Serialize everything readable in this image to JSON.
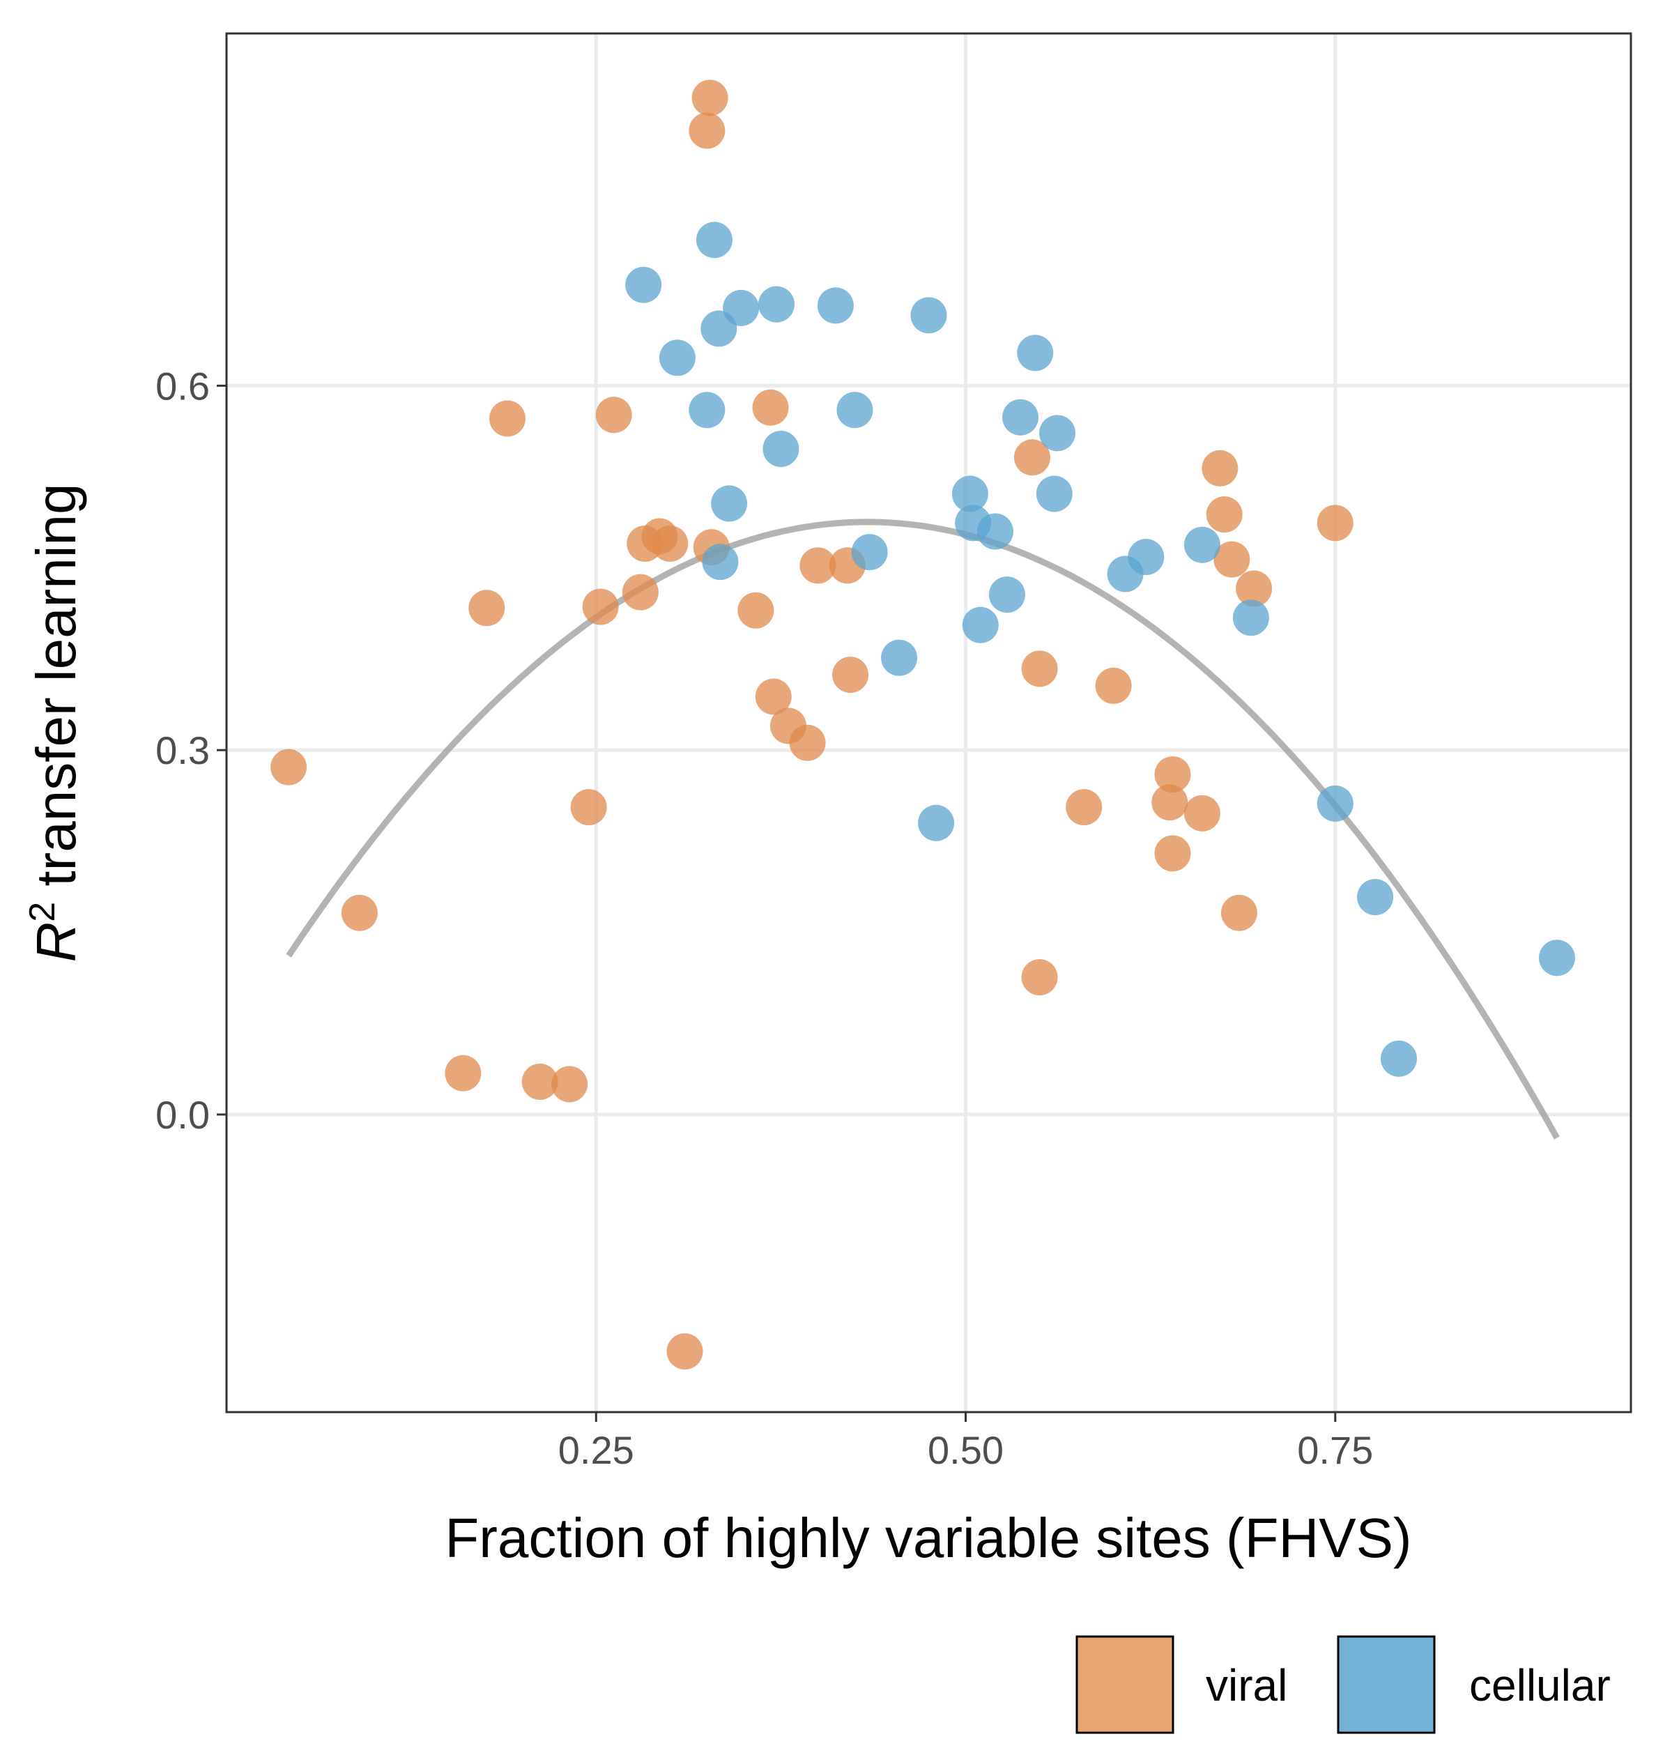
{
  "chart_data": {
    "type": "scatter",
    "xlabel": "Fraction of highly variable sites (FHVS)",
    "ylabel_base": "R",
    "ylabel_sup": "2",
    "ylabel_rest": " transfer learning",
    "xlim": [
      0.0,
      0.95
    ],
    "ylim": [
      -0.245,
      0.89
    ],
    "xticks": [
      0.25,
      0.5,
      0.75
    ],
    "xtick_labels": [
      "0.25",
      "0.50",
      "0.75"
    ],
    "yticks": [
      0.0,
      0.3,
      0.6
    ],
    "ytick_labels": [
      "0.0",
      "0.3",
      "0.6"
    ],
    "grid": true,
    "legend_position": "bottom-right",
    "series": [
      {
        "name": "viral",
        "color": "#E08A4B",
        "points": [
          [
            0.042,
            0.286
          ],
          [
            0.09,
            0.166
          ],
          [
            0.16,
            0.034
          ],
          [
            0.176,
            0.417
          ],
          [
            0.19,
            0.573
          ],
          [
            0.212,
            0.027
          ],
          [
            0.232,
            0.025
          ],
          [
            0.245,
            0.253
          ],
          [
            0.253,
            0.418
          ],
          [
            0.262,
            0.576
          ],
          [
            0.28,
            0.43
          ],
          [
            0.283,
            0.47
          ],
          [
            0.293,
            0.476
          ],
          [
            0.3,
            0.47
          ],
          [
            0.31,
            -0.195
          ],
          [
            0.325,
            0.81
          ],
          [
            0.327,
            0.837
          ],
          [
            0.328,
            0.467
          ],
          [
            0.358,
            0.415
          ],
          [
            0.368,
            0.582
          ],
          [
            0.37,
            0.344
          ],
          [
            0.38,
            0.32
          ],
          [
            0.393,
            0.306
          ],
          [
            0.4,
            0.452
          ],
          [
            0.42,
            0.452
          ],
          [
            0.422,
            0.362
          ],
          [
            0.545,
            0.541
          ],
          [
            0.55,
            0.367
          ],
          [
            0.55,
            0.113
          ],
          [
            0.58,
            0.253
          ],
          [
            0.6,
            0.353
          ],
          [
            0.638,
            0.257
          ],
          [
            0.64,
            0.28
          ],
          [
            0.64,
            0.215
          ],
          [
            0.66,
            0.248
          ],
          [
            0.672,
            0.532
          ],
          [
            0.675,
            0.494
          ],
          [
            0.68,
            0.457
          ],
          [
            0.685,
            0.166
          ],
          [
            0.695,
            0.433
          ],
          [
            0.75,
            0.487
          ]
        ]
      },
      {
        "name": "cellular",
        "color": "#5BA4D0",
        "points": [
          [
            0.282,
            0.683
          ],
          [
            0.305,
            0.623
          ],
          [
            0.325,
            0.58
          ],
          [
            0.33,
            0.72
          ],
          [
            0.333,
            0.647
          ],
          [
            0.334,
            0.455
          ],
          [
            0.34,
            0.503
          ],
          [
            0.348,
            0.664
          ],
          [
            0.372,
            0.667
          ],
          [
            0.375,
            0.548
          ],
          [
            0.412,
            0.666
          ],
          [
            0.425,
            0.58
          ],
          [
            0.435,
            0.463
          ],
          [
            0.455,
            0.376
          ],
          [
            0.475,
            0.658
          ],
          [
            0.48,
            0.24
          ],
          [
            0.503,
            0.511
          ],
          [
            0.505,
            0.487
          ],
          [
            0.51,
            0.403
          ],
          [
            0.52,
            0.48
          ],
          [
            0.528,
            0.428
          ],
          [
            0.537,
            0.574
          ],
          [
            0.547,
            0.627
          ],
          [
            0.56,
            0.511
          ],
          [
            0.562,
            0.561
          ],
          [
            0.608,
            0.445
          ],
          [
            0.622,
            0.459
          ],
          [
            0.66,
            0.469
          ],
          [
            0.693,
            0.409
          ],
          [
            0.75,
            0.256
          ],
          [
            0.777,
            0.179
          ],
          [
            0.793,
            0.046
          ],
          [
            0.9,
            0.129
          ]
        ]
      }
    ],
    "fit_curve": {
      "color": "#999999",
      "x_range": [
        0.042,
        0.9
      ],
      "coefficients": [
        0.05,
        2.02,
        -2.33
      ]
    },
    "legend": [
      {
        "label": "viral",
        "color": "#E8A673"
      },
      {
        "label": "cellular",
        "color": "#74B3D8"
      }
    ]
  }
}
